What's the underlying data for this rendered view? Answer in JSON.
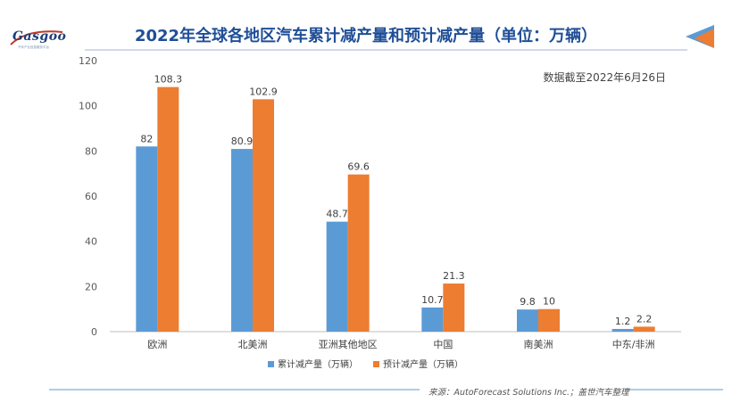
{
  "header": {
    "title": "2022年全球各地区汽车累计减产量和预计减产量（单位：万辆）",
    "logo_text": "Gasgoo",
    "logo_sub": "汽车产业信息服务平台",
    "note": "数据截至2022年6月26日"
  },
  "footer": {
    "source": "来源：AutoForecast Solutions Inc.；盖世汽车整理"
  },
  "colors": {
    "series1": "#5b9bd5",
    "series2": "#ed7d31",
    "title": "#1f4e96"
  },
  "chart_data": {
    "type": "bar",
    "categories": [
      "欧洲",
      "北美洲",
      "亚洲其他地区",
      "中国",
      "南美洲",
      "中东/非洲"
    ],
    "series": [
      {
        "name": "累计减产量（万辆）",
        "values": [
          82,
          80.9,
          48.7,
          10.7,
          9.8,
          1.2
        ]
      },
      {
        "name": "预计减产量（万辆）",
        "values": [
          108.3,
          102.9,
          69.6,
          21.3,
          10,
          2.2
        ]
      }
    ],
    "ylim": [
      0,
      120
    ],
    "yticks": [
      0,
      20,
      40,
      60,
      80,
      100,
      120
    ],
    "grid": false,
    "legend": "bottom"
  }
}
